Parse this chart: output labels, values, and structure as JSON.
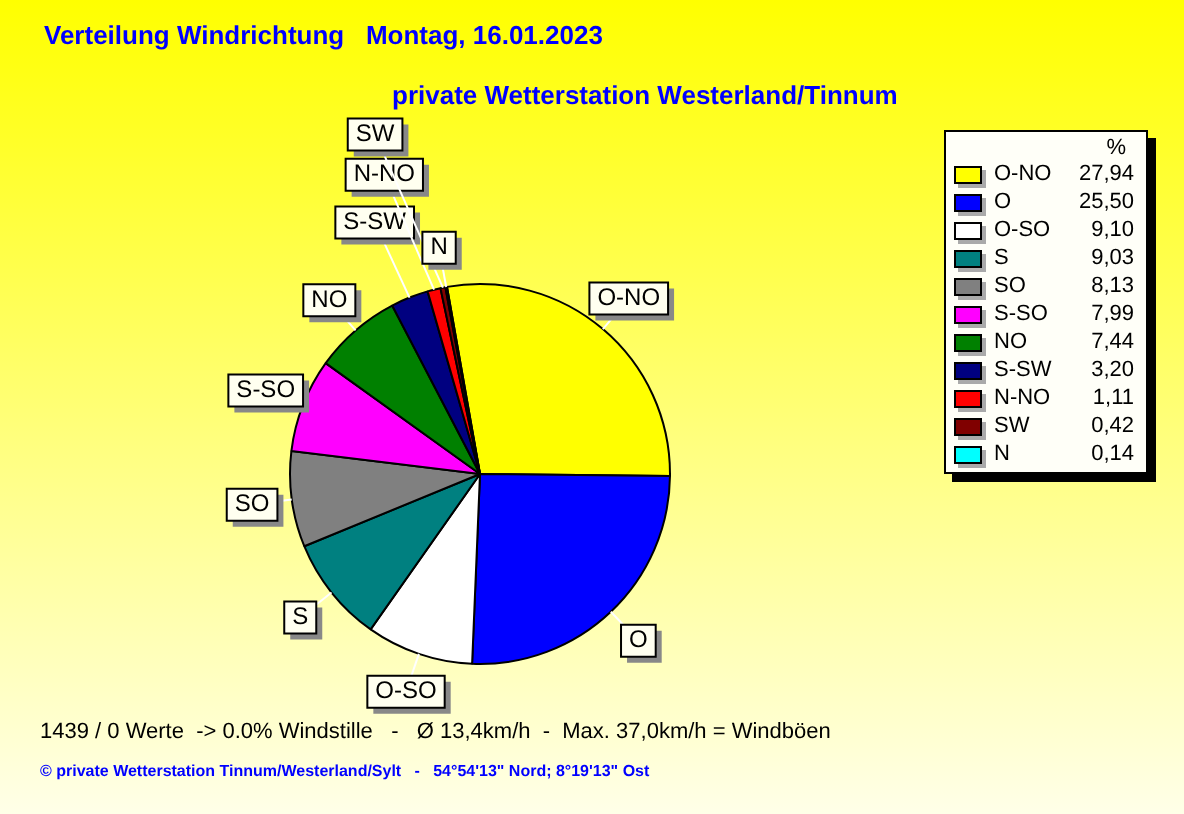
{
  "chart_data": {
    "type": "pie",
    "title": "Verteilung Windrichtung   Montag, 16.01.2023",
    "subtitle": "private Wetterstation Westerland/Tinnum",
    "legend_title": "%",
    "categories": [
      "O-NO",
      "O",
      "O-SO",
      "S",
      "SO",
      "S-SO",
      "NO",
      "S-SW",
      "N-NO",
      "SW",
      "N"
    ],
    "values": [
      27.94,
      25.5,
      9.1,
      9.03,
      8.13,
      7.99,
      7.44,
      3.2,
      1.11,
      0.42,
      0.14
    ],
    "value_labels": [
      "27,94",
      "25,50",
      "9,10",
      "9,03",
      "8,13",
      "7,99",
      "7,44",
      "3,20",
      "1,11",
      "0,42",
      "0,14"
    ],
    "colors": [
      "#ffff00",
      "#0000ff",
      "#ffffff",
      "#008080",
      "#808080",
      "#ff00ff",
      "#008000",
      "#000080",
      "#ff0000",
      "#800000",
      "#00ffff"
    ],
    "legend": "right",
    "annotations": [
      "1439 / 0 Werte  -> 0.0% Windstille   -   Ø 13,4km/h  -  Max. 37,0km/h = Windböen",
      "© private Wetterstation Tinnum/Westerland/Sylt   -   54°54'13\" Nord; 8°19'13\" Ost"
    ]
  }
}
